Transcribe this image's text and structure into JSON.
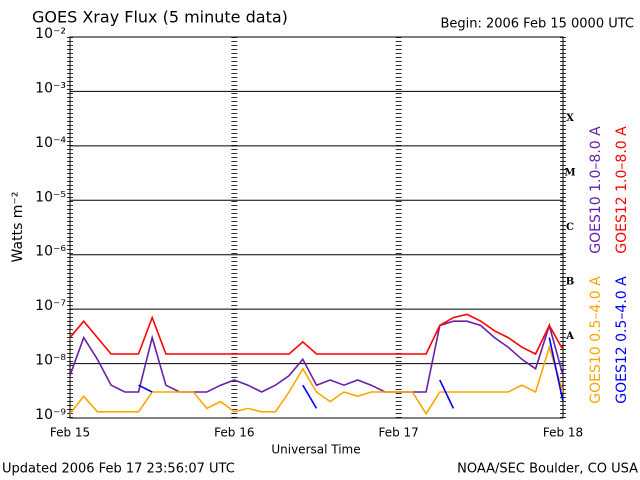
{
  "chart_data": {
    "type": "line",
    "title": "GOES Xray Flux (5 minute data)",
    "subtitle": "Begin:  2006 Feb 15 0000 UTC",
    "x_label": "Universal Time",
    "y_label": "Watts m⁻²",
    "footer_left": "Updated 2006 Feb 17 23:56:07 UTC",
    "footer_right": "NOAA/SEC Boulder, CO USA",
    "log_scale": true,
    "grid": true,
    "xlim": [
      0,
      72
    ],
    "xticks": [
      {
        "value": 0,
        "label": "Feb 15"
      },
      {
        "value": 24,
        "label": "Feb 16"
      },
      {
        "value": 48,
        "label": "Feb 17"
      },
      {
        "value": 72,
        "label": "Feb 18"
      }
    ],
    "ylim": [
      1e-09,
      0.01
    ],
    "yticks": [
      {
        "value": 1e-09,
        "label": "10⁻⁹"
      },
      {
        "value": 1e-08,
        "label": "10⁻⁸"
      },
      {
        "value": 1e-07,
        "label": "10⁻⁷"
      },
      {
        "value": 1e-06,
        "label": "10⁻⁶"
      },
      {
        "value": 1e-05,
        "label": "10⁻⁵"
      },
      {
        "value": 0.0001,
        "label": "10⁻⁴"
      },
      {
        "value": 0.001,
        "label": "10⁻³"
      },
      {
        "value": 0.01,
        "label": "10⁻²"
      }
    ],
    "class_labels": [
      "A",
      "B",
      "C",
      "M",
      "X"
    ],
    "x": [
      0,
      2,
      4,
      6,
      8,
      10,
      12,
      14,
      16,
      18,
      20,
      22,
      24,
      26,
      28,
      30,
      32,
      34,
      36,
      38,
      40,
      42,
      44,
      46,
      48,
      50,
      52,
      54,
      56,
      58,
      60,
      62,
      64,
      66,
      68,
      70,
      72
    ],
    "series": [
      {
        "name": "GOES10 1.0–8.0 A",
        "color": "#6a1fa8",
        "values": [
          6e-09,
          3e-08,
          1.2e-08,
          4e-09,
          3e-09,
          3e-09,
          3e-08,
          4e-09,
          3e-09,
          3e-09,
          3e-09,
          4e-09,
          5e-09,
          4e-09,
          3e-09,
          4e-09,
          6e-09,
          1.2e-08,
          4e-09,
          5e-09,
          4e-09,
          5e-09,
          4e-09,
          3e-09,
          3e-09,
          3e-09,
          3e-09,
          5e-08,
          6e-08,
          6e-08,
          5e-08,
          3e-08,
          2e-08,
          1.2e-08,
          8e-09,
          5e-08,
          6e-09
        ]
      },
      {
        "name": "GOES12 1.0–8.0 A",
        "color": "#ff0000",
        "values": [
          3e-08,
          6e-08,
          3e-08,
          1.5e-08,
          1.5e-08,
          1.5e-08,
          7e-08,
          1.5e-08,
          1.5e-08,
          1.5e-08,
          1.5e-08,
          1.5e-08,
          1.5e-08,
          1.5e-08,
          1.5e-08,
          1.5e-08,
          1.5e-08,
          2.5e-08,
          1.5e-08,
          1.5e-08,
          1.5e-08,
          1.5e-08,
          1.5e-08,
          1.5e-08,
          1.5e-08,
          1.5e-08,
          1.5e-08,
          5e-08,
          7e-08,
          8e-08,
          6e-08,
          4e-08,
          3e-08,
          2e-08,
          1.5e-08,
          5e-08,
          1.8e-08
        ]
      },
      {
        "name": "GOES10 0.5–4.0 A",
        "color": "#ffa500",
        "values": [
          1.2e-09,
          2.5e-09,
          1.3e-09,
          1.3e-09,
          1.3e-09,
          1.3e-09,
          3e-09,
          3e-09,
          3e-09,
          3e-09,
          1.5e-09,
          2e-09,
          1.3e-09,
          1.5e-09,
          1.3e-09,
          1.3e-09,
          3e-09,
          8e-09,
          3e-09,
          2e-09,
          3e-09,
          2.5e-09,
          3e-09,
          3e-09,
          3e-09,
          3e-09,
          1.2e-09,
          3e-09,
          3e-09,
          3e-09,
          3e-09,
          3e-09,
          3e-09,
          4e-09,
          3e-09,
          2e-08,
          3e-09
        ]
      },
      {
        "name": "GOES12 0.5–4.0 A",
        "color": "#0000ff",
        "values": [
          null,
          null,
          null,
          null,
          null,
          4e-09,
          3e-09,
          null,
          null,
          null,
          null,
          null,
          null,
          null,
          null,
          null,
          null,
          4e-09,
          1.5e-09,
          null,
          null,
          null,
          null,
          null,
          null,
          null,
          null,
          5e-09,
          1.5e-09,
          null,
          null,
          null,
          null,
          null,
          null,
          3e-08,
          2e-09
        ]
      }
    ]
  }
}
